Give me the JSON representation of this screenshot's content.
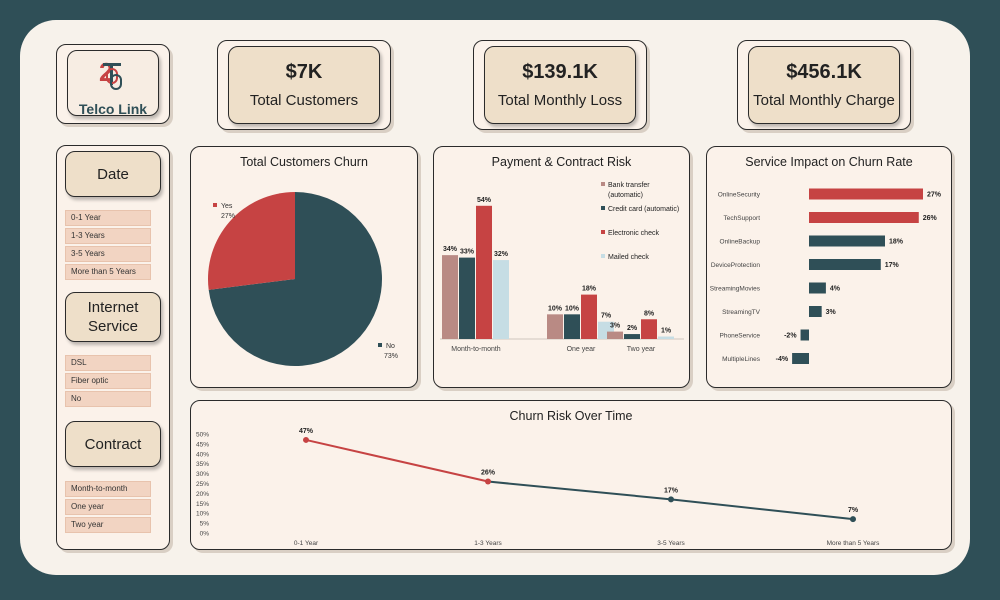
{
  "brand": {
    "name": "Telco Link"
  },
  "colors": {
    "red": "#c64343",
    "teal": "#2f4f57",
    "rose": "#b98a84",
    "light_blue": "#c6dde4"
  },
  "kpis": [
    {
      "value": "$7K",
      "label": "Total Customers"
    },
    {
      "value": "$139.1K",
      "label": "Total Monthly Loss"
    },
    {
      "value": "$456.1K",
      "label": "Total Monthly Charge"
    }
  ],
  "filters": {
    "date": {
      "title": "Date",
      "options": [
        "0-1 Year",
        "1-3 Years",
        "3-5 Years",
        "More than 5 Years"
      ]
    },
    "internet": {
      "title_line1": "Internet",
      "title_line2": "Service",
      "options": [
        "DSL",
        "Fiber optic",
        "No"
      ]
    },
    "contract": {
      "title": "Contract",
      "options": [
        "Month-to-month",
        "One year",
        "Two year"
      ]
    }
  },
  "chart_data": [
    {
      "type": "pie",
      "title": "Total Customers Churn",
      "categories": [
        "Yes",
        "No"
      ],
      "values": [
        27,
        73
      ],
      "labels": [
        "27%",
        "73%"
      ],
      "colors": [
        "#c64343",
        "#2f4f57"
      ]
    },
    {
      "type": "bar",
      "title": "Payment & Contract Risk",
      "categories": [
        "Month-to-month",
        "One year",
        "Two year"
      ],
      "series": [
        {
          "name": "Bank transfer (automatic)",
          "name_line1": "Bank transfer",
          "name_line2": "(automatic)",
          "values": [
            34,
            10,
            3
          ],
          "labels": [
            "34%",
            "10%",
            "3%"
          ],
          "color": "#b98a84"
        },
        {
          "name": "Credit card (automatic)",
          "name_line1": "Credit card (automatic)",
          "name_line2": "",
          "values": [
            33,
            10,
            2
          ],
          "labels": [
            "33%",
            "10%",
            "2%"
          ],
          "color": "#2f4f57"
        },
        {
          "name": "Electronic check",
          "name_line1": "Electronic check",
          "name_line2": "",
          "values": [
            54,
            18,
            8
          ],
          "labels": [
            "54%",
            "18%",
            "8%"
          ],
          "color": "#c64343"
        },
        {
          "name": "Mailed check",
          "name_line1": "Mailed check",
          "name_line2": "",
          "values": [
            32,
            7,
            1
          ],
          "labels": [
            "32%",
            "7%",
            "1%"
          ],
          "color": "#c6dde4"
        }
      ],
      "legend": "right",
      "ylim": [
        0,
        60
      ]
    },
    {
      "type": "bar",
      "orientation": "horizontal",
      "title": "Service Impact on Churn Rate",
      "categories": [
        "OnlineSecurity",
        "TechSupport",
        "OnlineBackup",
        "DeviceProtection",
        "StreamingMovies",
        "StreamingTV",
        "PhoneService",
        "MultipleLines"
      ],
      "values": [
        27,
        26,
        18,
        17,
        4,
        3,
        -2,
        -4
      ],
      "labels": [
        "27%",
        "26%",
        "18%",
        "17%",
        "4%",
        "3%",
        "-2%",
        "-4%"
      ],
      "colors": [
        "#c64343",
        "#c64343",
        "#2f4f57",
        "#2f4f57",
        "#2f4f57",
        "#2f4f57",
        "#2f4f57",
        "#2f4f57"
      ],
      "xlim": [
        -4,
        27
      ]
    },
    {
      "type": "line",
      "title": "Churn Risk Over Time",
      "categories": [
        "0-1 Year",
        "1-3 Years",
        "3-5 Years",
        "More than 5 Years"
      ],
      "values": [
        47,
        26,
        17,
        7
      ],
      "labels": [
        "47%",
        "26%",
        "17%",
        "7%"
      ],
      "ylim": [
        0,
        50
      ],
      "yticks": [
        0,
        5,
        10,
        15,
        20,
        25,
        30,
        35,
        40,
        45,
        50
      ],
      "ytick_labels": [
        "0%",
        "5%",
        "10%",
        "15%",
        "20%",
        "25%",
        "30%",
        "35%",
        "40%",
        "45%",
        "50%"
      ],
      "segment_colors": [
        "#c64343",
        "#2f4f57",
        "#2f4f57"
      ]
    }
  ]
}
